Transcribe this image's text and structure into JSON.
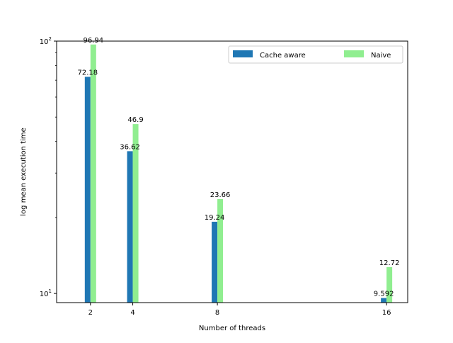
{
  "chart_data": {
    "type": "bar",
    "title": "",
    "xlabel": "Number of threads",
    "ylabel": "log mean execution time",
    "y_scale": "log",
    "ylim": [
      9.2,
      100
    ],
    "xlim": [
      0.4,
      17.0
    ],
    "x": [
      2,
      4,
      8,
      16
    ],
    "x_tick_labels": [
      "2",
      "4",
      "8",
      "16"
    ],
    "y_tick_values": [
      10,
      100
    ],
    "y_tick_labels": [
      {
        "base": "10",
        "exp": "1"
      },
      {
        "base": "10",
        "exp": "2"
      }
    ],
    "legend_position": "top-right",
    "series": [
      {
        "name": "Cache aware",
        "color": "#1f77b4",
        "values": [
          72.18,
          36.62,
          19.24,
          9.592
        ],
        "labels": [
          "72.18",
          "36.62",
          "19.24",
          "9.592"
        ]
      },
      {
        "name": "Naive",
        "color": "#90ee90",
        "values": [
          96.94,
          46.9,
          23.66,
          12.72
        ],
        "labels": [
          "96.94",
          "46.9",
          "23.66",
          "12.72"
        ]
      }
    ],
    "grid": false
  }
}
